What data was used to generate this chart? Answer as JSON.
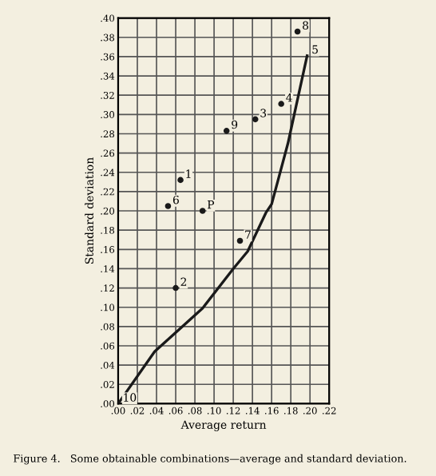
{
  "chart_data": {
    "type": "scatter",
    "xlabel": "Average return",
    "ylabel": "Standard deviation",
    "series": [
      {
        "color": "#1a1a1a",
        "marker": "circle",
        "x": [
          0.065,
          0.06,
          0.143,
          0.17,
          0.052,
          0.127,
          0.187,
          0.113,
          0.088
        ],
        "values": [
          0.232,
          0.12,
          0.295,
          0.311,
          0.205,
          0.169,
          0.386,
          0.283,
          0.2
        ]
      },
      {
        "type": "line",
        "color": "#1a1a1a",
        "x": [
          0.0,
          0.038,
          0.088,
          0.12,
          0.135,
          0.154,
          0.16,
          0.177,
          0.188,
          0.197
        ],
        "values": [
          0.0,
          0.054,
          0.099,
          0.14,
          0.158,
          0.198,
          0.207,
          0.27,
          0.32,
          0.361
        ]
      }
    ],
    "annotations": [
      {
        "text": "1",
        "x": 0.065,
        "y": 0.232
      },
      {
        "text": "2",
        "x": 0.06,
        "y": 0.12
      },
      {
        "text": "3",
        "x": 0.143,
        "y": 0.295
      },
      {
        "text": "4",
        "x": 0.17,
        "y": 0.311
      },
      {
        "text": "5",
        "x": 0.197,
        "y": 0.361
      },
      {
        "text": "6",
        "x": 0.052,
        "y": 0.205
      },
      {
        "text": "7",
        "x": 0.127,
        "y": 0.169
      },
      {
        "text": "8",
        "x": 0.187,
        "y": 0.386
      },
      {
        "text": "9",
        "x": 0.113,
        "y": 0.283
      },
      {
        "text": "10",
        "x": 0.0,
        "y": 0.0
      },
      {
        "text": "P",
        "x": 0.088,
        "y": 0.2
      },
      "Figure 4.   Some obtainable combinations—average and standard deviation."
    ],
    "xlim": [
      0,
      0.22
    ],
    "ylim": [
      0,
      0.4
    ],
    "xticks": [
      {
        "value": 0,
        "label": ".00"
      },
      {
        "value": 0.02,
        "label": ".02"
      },
      {
        "value": 0.04,
        "label": ".04"
      },
      {
        "value": 0.06,
        "label": ".06"
      },
      {
        "value": 0.08,
        "label": ".08"
      },
      {
        "value": 0.1,
        "label": ".10"
      },
      {
        "value": 0.12,
        "label": ".12"
      },
      {
        "value": 0.14,
        "label": ".14"
      },
      {
        "value": 0.16,
        "label": ".16"
      },
      {
        "value": 0.18,
        "label": ".18"
      },
      {
        "value": 0.2,
        "label": ".20"
      },
      {
        "value": 0.22,
        "label": ".22"
      }
    ],
    "yticks": [
      {
        "value": 0,
        "label": ".00"
      },
      {
        "value": 0.02,
        "label": ".02"
      },
      {
        "value": 0.04,
        "label": ".04"
      },
      {
        "value": 0.06,
        "label": ".06"
      },
      {
        "value": 0.08,
        "label": ".08"
      },
      {
        "value": 0.1,
        "label": ".10"
      },
      {
        "value": 0.12,
        "label": ".12"
      },
      {
        "value": 0.14,
        "label": ".14"
      },
      {
        "value": 0.16,
        "label": ".16"
      },
      {
        "value": 0.18,
        "label": ".18"
      },
      {
        "value": 0.2,
        "label": ".20"
      },
      {
        "value": 0.22,
        "label": ".22"
      },
      {
        "value": 0.24,
        "label": ".24"
      },
      {
        "value": 0.26,
        "label": ".26"
      },
      {
        "value": 0.28,
        "label": ".28"
      },
      {
        "value": 0.3,
        "label": ".30"
      },
      {
        "value": 0.32,
        "label": ".32"
      },
      {
        "value": 0.34,
        "label": ".34"
      },
      {
        "value": 0.36,
        "label": ".36"
      },
      {
        "value": 0.38,
        "label": ".38"
      },
      {
        "value": 0.4,
        "label": ".40"
      }
    ],
    "grid": true
  }
}
